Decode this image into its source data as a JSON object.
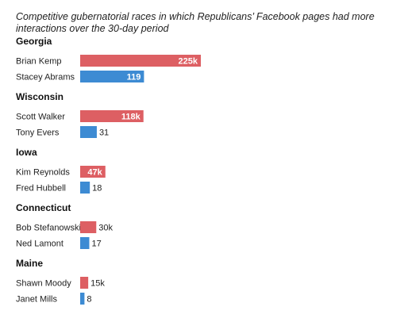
{
  "chart_data": {
    "type": "bar",
    "orientation": "horizontal",
    "title": "Competitive gubernatorial races in which Republicans’ Facebook pages had more interactions over the 30-day period",
    "colors": {
      "republican": "#dd5f63",
      "democrat": "#3d8bd3"
    },
    "groups": [
      {
        "state": "Georgia",
        "bars": [
          {
            "candidate": "Brian Kemp",
            "value": 225000,
            "label": "225k",
            "party": "republican",
            "label_inside": true
          },
          {
            "candidate": "Stacey Abrams",
            "value": 119000,
            "label": "119",
            "party": "democrat",
            "label_inside": true
          }
        ]
      },
      {
        "state": "Wisconsin",
        "bars": [
          {
            "candidate": "Scott Walker",
            "value": 118000,
            "label": "118k",
            "party": "republican",
            "label_inside": true
          },
          {
            "candidate": "Tony Evers",
            "value": 31000,
            "label": "31",
            "party": "democrat",
            "label_inside": false
          }
        ]
      },
      {
        "state": "Iowa",
        "bars": [
          {
            "candidate": "Kim Reynolds",
            "value": 47000,
            "label": "47k",
            "party": "republican",
            "label_inside": true
          },
          {
            "candidate": "Fred Hubbell",
            "value": 18000,
            "label": "18",
            "party": "democrat",
            "label_inside": false
          }
        ]
      },
      {
        "state": "Connecticut",
        "bars": [
          {
            "candidate": "Bob Stefanowski",
            "value": 30000,
            "label": "30k",
            "party": "republican",
            "label_inside": false
          },
          {
            "candidate": "Ned Lamont",
            "value": 17000,
            "label": "17",
            "party": "democrat",
            "label_inside": false
          }
        ]
      },
      {
        "state": "Maine",
        "bars": [
          {
            "candidate": "Shawn Moody",
            "value": 15000,
            "label": "15k",
            "party": "republican",
            "label_inside": false
          },
          {
            "candidate": "Janet Mills",
            "value": 8000,
            "label": "8",
            "party": "democrat",
            "label_inside": false
          }
        ]
      }
    ],
    "xlim": [
      0,
      225000
    ],
    "grid": false,
    "legend": "none"
  }
}
